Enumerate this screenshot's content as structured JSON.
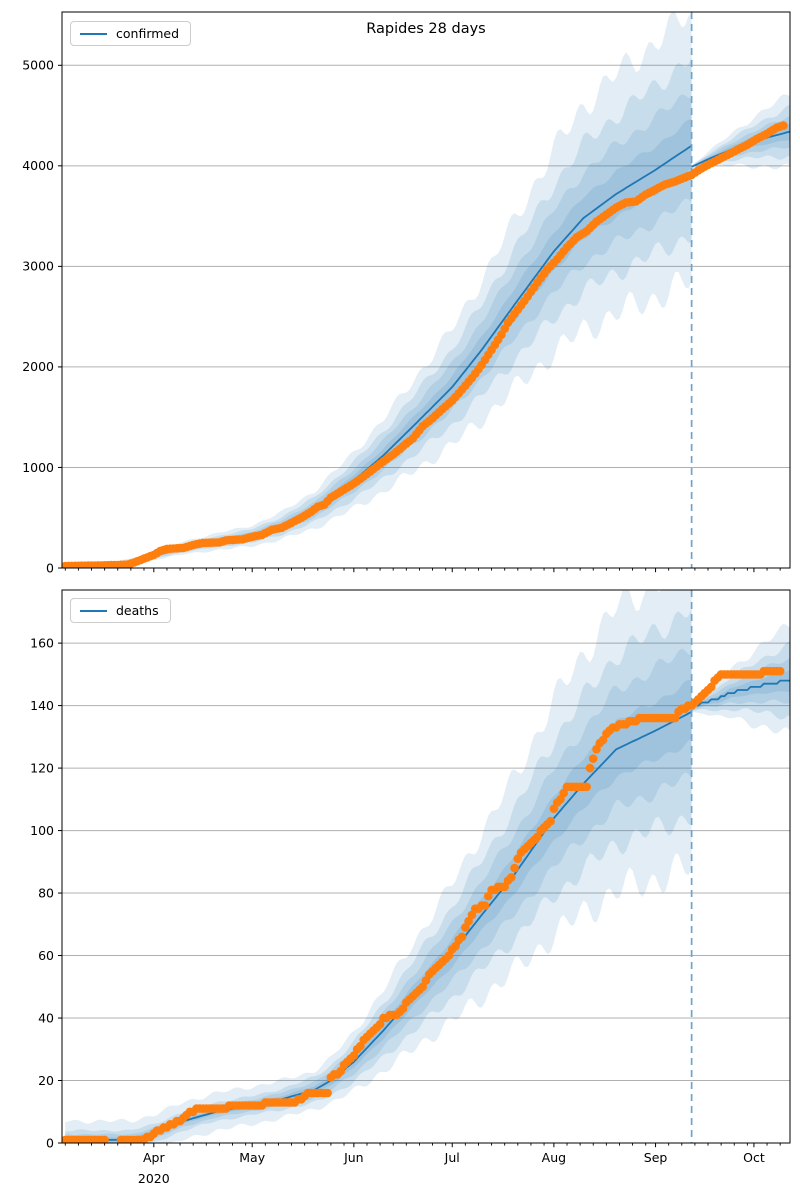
{
  "figure": {
    "title": "Rapides 28 days",
    "year_label": "2020"
  },
  "palette": {
    "model_line": "#1f77b4",
    "actual_points": "#ff7f0e",
    "band_fill": "#1f77b4",
    "grid": "#b0b0b0",
    "forecast_divider": "#6fa3cf",
    "axis": "#000000"
  },
  "x_axis": {
    "point_format": "[month, day] of 2020",
    "xlim": [
      [
        3,
        4
      ],
      [
        10,
        12
      ]
    ],
    "forecast_start": [
      9,
      12
    ],
    "month_ticks": [
      {
        "m": 4,
        "label": "Apr",
        "sub": "2020"
      },
      {
        "m": 5,
        "label": "May"
      },
      {
        "m": 6,
        "label": "Jun"
      },
      {
        "m": 7,
        "label": "Jul"
      },
      {
        "m": 8,
        "label": "Aug"
      },
      {
        "m": 9,
        "label": "Sep"
      },
      {
        "m": 10,
        "label": "Oct"
      }
    ],
    "minor_tick_days": [
      5,
      9,
      13,
      17,
      21,
      25,
      29
    ]
  },
  "chart_data": [
    {
      "type": "line",
      "name": "confirmed",
      "title": "Rapides 28 days",
      "legend": [
        "confirmed"
      ],
      "legend_loc": "upper left",
      "xlabel": "",
      "ylabel": "",
      "ylim": [
        0,
        5530
      ],
      "yticks": [
        0,
        1000,
        2000,
        3000,
        4000,
        5000
      ],
      "grid": true,
      "point_format": "[month, day, value] (2020); value -1 = missing",
      "series": {
        "actual": [
          [
            3,
            5,
            20
          ],
          [
            3,
            14,
            25
          ],
          [
            3,
            21,
            30
          ],
          [
            3,
            24,
            35
          ],
          [
            3,
            26,
            55
          ],
          [
            3,
            28,
            80
          ],
          [
            3,
            30,
            105
          ],
          [
            4,
            1,
            130
          ],
          [
            4,
            3,
            170
          ],
          [
            4,
            5,
            190
          ],
          [
            4,
            10,
            200
          ],
          [
            4,
            13,
            230
          ],
          [
            4,
            16,
            250
          ],
          [
            4,
            21,
            255
          ],
          [
            4,
            23,
            275
          ],
          [
            4,
            28,
            285
          ],
          [
            5,
            1,
            310
          ],
          [
            5,
            4,
            330
          ],
          [
            5,
            7,
            380
          ],
          [
            5,
            10,
            400
          ],
          [
            5,
            13,
            450
          ],
          [
            5,
            16,
            500
          ],
          [
            5,
            19,
            560
          ],
          [
            5,
            21,
            610
          ],
          [
            5,
            23,
            630
          ],
          [
            5,
            25,
            700
          ],
          [
            5,
            28,
            760
          ],
          [
            6,
            1,
            840
          ],
          [
            6,
            4,
            910
          ],
          [
            6,
            7,
            985
          ],
          [
            6,
            10,
            1060
          ],
          [
            6,
            13,
            1130
          ],
          [
            6,
            16,
            1210
          ],
          [
            6,
            19,
            1290
          ],
          [
            6,
            22,
            1410
          ],
          [
            6,
            25,
            1490
          ],
          [
            6,
            28,
            1580
          ],
          [
            7,
            1,
            1665
          ],
          [
            7,
            4,
            1775
          ],
          [
            7,
            7,
            1890
          ],
          [
            7,
            10,
            2020
          ],
          [
            7,
            13,
            2170
          ],
          [
            7,
            16,
            2320
          ],
          [
            7,
            18,
            2440
          ],
          [
            7,
            21,
            2570
          ],
          [
            7,
            24,
            2700
          ],
          [
            7,
            27,
            2840
          ],
          [
            7,
            30,
            2970
          ],
          [
            8,
            2,
            3070
          ],
          [
            8,
            5,
            3190
          ],
          [
            8,
            8,
            3290
          ],
          [
            8,
            11,
            3350
          ],
          [
            8,
            14,
            3445
          ],
          [
            8,
            17,
            3515
          ],
          [
            8,
            20,
            3585
          ],
          [
            8,
            23,
            3635
          ],
          [
            8,
            26,
            3645
          ],
          [
            8,
            29,
            3715
          ],
          [
            9,
            1,
            3765
          ],
          [
            9,
            4,
            3815
          ],
          [
            9,
            7,
            3845
          ],
          [
            9,
            10,
            3885
          ],
          [
            9,
            12,
            3910
          ],
          [
            9,
            14,
            3955
          ],
          [
            9,
            17,
            4010
          ],
          [
            9,
            20,
            4060
          ],
          [
            9,
            23,
            4110
          ],
          [
            9,
            26,
            4160
          ],
          [
            9,
            29,
            4210
          ],
          [
            10,
            2,
            4270
          ],
          [
            10,
            5,
            4320
          ],
          [
            10,
            8,
            4380
          ],
          [
            10,
            10,
            4400
          ]
        ],
        "fit": [
          [
            3,
            5,
            15
          ],
          [
            3,
            20,
            30
          ],
          [
            4,
            1,
            120
          ],
          [
            4,
            10,
            200
          ],
          [
            4,
            20,
            260
          ],
          [
            5,
            1,
            320
          ],
          [
            5,
            10,
            420
          ],
          [
            5,
            20,
            580
          ],
          [
            6,
            1,
            870
          ],
          [
            6,
            10,
            1120
          ],
          [
            6,
            20,
            1440
          ],
          [
            7,
            1,
            1800
          ],
          [
            7,
            10,
            2170
          ],
          [
            7,
            20,
            2620
          ],
          [
            8,
            1,
            3150
          ],
          [
            8,
            10,
            3480
          ],
          [
            8,
            20,
            3720
          ],
          [
            9,
            1,
            3960
          ],
          [
            9,
            6,
            4070
          ],
          [
            9,
            12,
            4200
          ]
        ],
        "forecast": [
          [
            9,
            12,
            3990
          ],
          [
            9,
            18,
            4080
          ],
          [
            9,
            24,
            4160
          ],
          [
            9,
            30,
            4230
          ],
          [
            10,
            6,
            4290
          ],
          [
            10,
            12,
            4340
          ]
        ]
      },
      "bands": {
        "hist_frac": [
          0.06,
          0.13,
          0.21,
          0.32
        ],
        "hist_min": [
          5,
          10,
          18,
          30
        ],
        "forecast_per_day": [
          2.5,
          5,
          8,
          12
        ],
        "forecast_base": [
          3,
          5,
          8,
          12
        ]
      }
    },
    {
      "type": "line",
      "name": "deaths",
      "title": "",
      "legend": [
        "deaths"
      ],
      "legend_loc": "upper left",
      "xlabel": "",
      "ylabel": "",
      "ylim": [
        0,
        177
      ],
      "yticks": [
        0,
        20,
        40,
        60,
        80,
        100,
        120,
        140,
        160
      ],
      "grid": true,
      "point_format": "[month, day, value] (2020); value -1 = missing",
      "series": {
        "actual": [
          [
            3,
            5,
            1
          ],
          [
            3,
            18,
            1
          ],
          [
            3,
            19,
            -1
          ],
          [
            3,
            21,
            -1
          ],
          [
            3,
            22,
            1
          ],
          [
            3,
            29,
            1
          ],
          [
            3,
            31,
            2
          ],
          [
            4,
            1,
            3
          ],
          [
            4,
            3,
            4
          ],
          [
            4,
            5,
            5
          ],
          [
            4,
            7,
            6
          ],
          [
            4,
            9,
            7
          ],
          [
            4,
            11,
            9
          ],
          [
            4,
            13,
            10
          ],
          [
            4,
            15,
            11
          ],
          [
            4,
            22,
            11
          ],
          [
            4,
            26,
            12
          ],
          [
            5,
            3,
            12
          ],
          [
            5,
            6,
            13
          ],
          [
            5,
            13,
            13
          ],
          [
            5,
            16,
            14
          ],
          [
            5,
            18,
            16
          ],
          [
            5,
            24,
            16
          ],
          [
            5,
            25,
            21
          ],
          [
            5,
            28,
            23
          ],
          [
            5,
            30,
            26
          ],
          [
            6,
            1,
            28
          ],
          [
            6,
            3,
            31
          ],
          [
            6,
            5,
            34
          ],
          [
            6,
            7,
            36
          ],
          [
            6,
            9,
            38
          ],
          [
            6,
            10,
            40
          ],
          [
            6,
            14,
            41
          ],
          [
            6,
            16,
            43
          ],
          [
            6,
            18,
            46
          ],
          [
            6,
            20,
            48
          ],
          [
            6,
            22,
            50
          ],
          [
            6,
            24,
            54
          ],
          [
            6,
            27,
            57
          ],
          [
            6,
            30,
            60
          ],
          [
            7,
            2,
            63
          ],
          [
            7,
            4,
            66
          ],
          [
            7,
            6,
            71
          ],
          [
            7,
            8,
            75
          ],
          [
            7,
            11,
            76
          ],
          [
            7,
            13,
            81
          ],
          [
            7,
            17,
            82
          ],
          [
            7,
            19,
            85
          ],
          [
            7,
            21,
            91
          ],
          [
            7,
            23,
            94
          ],
          [
            7,
            25,
            96
          ],
          [
            7,
            27,
            98
          ],
          [
            7,
            29,
            101
          ],
          [
            7,
            31,
            103
          ],
          [
            8,
            1,
            107
          ],
          [
            8,
            4,
            112
          ],
          [
            8,
            5,
            114
          ],
          [
            8,
            11,
            114
          ],
          [
            8,
            12,
            120
          ],
          [
            8,
            13,
            123
          ],
          [
            8,
            15,
            128
          ],
          [
            8,
            16,
            129
          ],
          [
            8,
            18,
            132
          ],
          [
            8,
            22,
            134
          ],
          [
            8,
            26,
            135
          ],
          [
            8,
            27,
            136
          ],
          [
            9,
            7,
            136
          ],
          [
            9,
            8,
            138
          ],
          [
            9,
            10,
            139
          ],
          [
            9,
            12,
            140
          ],
          [
            9,
            14,
            142
          ],
          [
            9,
            16,
            144
          ],
          [
            9,
            18,
            146
          ],
          [
            9,
            20,
            149
          ],
          [
            9,
            22,
            150
          ],
          [
            10,
            2,
            150
          ],
          [
            10,
            5,
            151
          ],
          [
            10,
            9,
            151
          ]
        ],
        "fit": [
          [
            3,
            5,
            1
          ],
          [
            3,
            25,
            1
          ],
          [
            4,
            1,
            3
          ],
          [
            4,
            10,
            7
          ],
          [
            4,
            20,
            10
          ],
          [
            5,
            1,
            12
          ],
          [
            5,
            10,
            14
          ],
          [
            5,
            20,
            17
          ],
          [
            5,
            25,
            20
          ],
          [
            6,
            1,
            26
          ],
          [
            6,
            10,
            36
          ],
          [
            6,
            20,
            48
          ],
          [
            7,
            1,
            61
          ],
          [
            7,
            10,
            73
          ],
          [
            7,
            20,
            86
          ],
          [
            8,
            1,
            104
          ],
          [
            8,
            10,
            115
          ],
          [
            8,
            20,
            126
          ],
          [
            9,
            1,
            132
          ],
          [
            9,
            12,
            138
          ]
        ],
        "forecast": [
          [
            9,
            12,
            139
          ],
          [
            9,
            16,
            141
          ],
          [
            9,
            20,
            142
          ],
          [
            9,
            24,
            144
          ],
          [
            9,
            28,
            145
          ],
          [
            10,
            2,
            146
          ],
          [
            10,
            6,
            147
          ],
          [
            10,
            12,
            148
          ]
        ]
      },
      "bands": {
        "hist_frac": [
          0.07,
          0.15,
          0.24,
          0.36
        ],
        "hist_min": [
          0.8,
          1.8,
          3,
          6
        ],
        "forecast_per_day": [
          0.1,
          0.22,
          0.36,
          0.55
        ],
        "forecast_base": [
          0.3,
          0.5,
          0.8,
          1.2
        ]
      }
    }
  ]
}
